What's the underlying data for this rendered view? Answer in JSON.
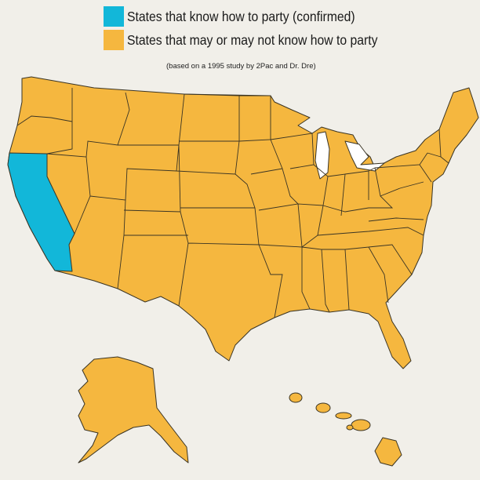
{
  "legend": {
    "items": [
      {
        "label": "States that know how to party (confirmed)",
        "color": "#12b7d9"
      },
      {
        "label": "States that may or may not know how to party",
        "color": "#f5b73f"
      }
    ],
    "note": "(based on a 1995 study by 2Pac and Dr. Dre)"
  },
  "map": {
    "highlighted_states": [
      "California"
    ],
    "highlight_color": "#12b7d9",
    "default_color": "#f5b73f",
    "lake_color": "#ffffff"
  }
}
